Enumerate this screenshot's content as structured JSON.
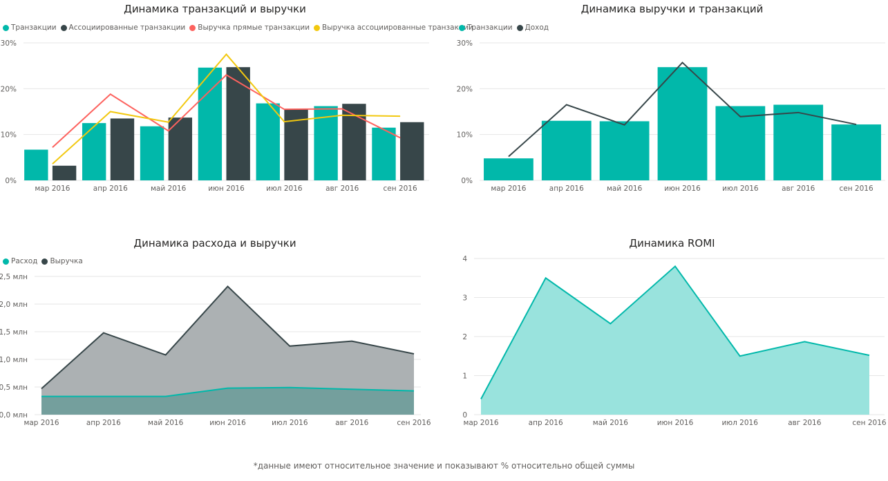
{
  "colors": {
    "teal": "#01b8aa",
    "dark": "#374649",
    "red": "#fd625e",
    "yellow": "#f2c80f",
    "grid": "#e6e6e6",
    "axis_text": "#605e5c",
    "area_dark": "#acb1b3",
    "area_teal_light": "#99e3dd",
    "area_overlap": "#749f9d"
  },
  "footnote": "*данные имеют относительное значение и показывают % относительно общей суммы",
  "chart_data": [
    {
      "type": "bar",
      "title": "Динамика транзакций и выручки",
      "categories": [
        "мар 2016",
        "апр 2016",
        "май 2016",
        "июн 2016",
        "июл 2016",
        "авг 2016",
        "сен 2016"
      ],
      "y_ticks": [
        "0%",
        "10%",
        "20%",
        "30%"
      ],
      "ylim": [
        0,
        30
      ],
      "legend": [
        "Транзакции",
        "Ассоциированные транзакции",
        "Выручка прямые транзакции",
        "Выручка ассоциированные транзакции"
      ],
      "series": [
        {
          "name": "Транзакции",
          "kind": "bar",
          "color": "#01b8aa",
          "values": [
            6.7,
            12.5,
            11.8,
            24.6,
            16.8,
            16.2,
            11.5
          ]
        },
        {
          "name": "Ассоциированные транзакции",
          "kind": "bar",
          "color": "#374649",
          "values": [
            3.2,
            13.5,
            13.7,
            24.7,
            15.6,
            16.7,
            12.7
          ]
        },
        {
          "name": "Выручка прямые транзакции",
          "kind": "line",
          "color": "#fd625e",
          "values": [
            7.2,
            18.8,
            10.8,
            23.0,
            15.5,
            15.6,
            9.3
          ]
        },
        {
          "name": "Выручка ассоциированные транзакции",
          "kind": "line",
          "color": "#f2c80f",
          "values": [
            3.6,
            15.0,
            12.7,
            27.5,
            12.8,
            14.2,
            14.0
          ]
        }
      ]
    },
    {
      "type": "bar",
      "title": "Динамика выручки и транзакций",
      "categories": [
        "мар 2016",
        "апр 2016",
        "май 2016",
        "июн 2016",
        "июл 2016",
        "авг 2016",
        "сен 2016"
      ],
      "y_ticks": [
        "0%",
        "10%",
        "20%",
        "30%"
      ],
      "ylim": [
        0,
        30
      ],
      "legend": [
        "Транзакции",
        "Доход"
      ],
      "series": [
        {
          "name": "Транзакции",
          "kind": "bar",
          "color": "#01b8aa",
          "values": [
            4.8,
            13.0,
            12.9,
            24.7,
            16.2,
            16.5,
            12.2
          ]
        },
        {
          "name": "Доход",
          "kind": "line",
          "color": "#374649",
          "values": [
            5.2,
            16.5,
            12.1,
            25.7,
            13.9,
            14.8,
            12.2
          ]
        }
      ]
    },
    {
      "type": "area",
      "title": "Динамика расхода и выручки",
      "categories": [
        "мар 2016",
        "апр 2016",
        "май 2016",
        "июн 2016",
        "июл 2016",
        "авг 2016",
        "сен 2016"
      ],
      "y_ticks": [
        "0,0 млн",
        "0,5 млн",
        "1,0 млн",
        "1,5 млн",
        "2,0 млн",
        "2,5 млн"
      ],
      "ylim": [
        0,
        2.5
      ],
      "legend": [
        "Расход",
        "Выручка"
      ],
      "series": [
        {
          "name": "Выручка",
          "color": "#374649",
          "fill": "#acb1b3",
          "values": [
            0.47,
            1.48,
            1.08,
            2.32,
            1.24,
            1.33,
            1.1
          ]
        },
        {
          "name": "Расход",
          "color": "#01b8aa",
          "fill": "#749f9d",
          "values": [
            0.33,
            0.33,
            0.33,
            0.48,
            0.49,
            0.46,
            0.43
          ]
        }
      ]
    },
    {
      "type": "area",
      "title": "Динамика ROMI",
      "categories": [
        "мар 2016",
        "апр 2016",
        "май 2016",
        "июн 2016",
        "июл 2016",
        "авг 2016",
        "сен 2016"
      ],
      "y_ticks": [
        "0",
        "1",
        "2",
        "3",
        "4"
      ],
      "ylim": [
        0,
        4
      ],
      "legend": [],
      "series": [
        {
          "name": "",
          "color": "#01b8aa",
          "fill": "#99e3dd",
          "values": [
            0.4,
            3.5,
            2.33,
            3.8,
            1.5,
            1.87,
            1.52
          ]
        }
      ]
    }
  ]
}
